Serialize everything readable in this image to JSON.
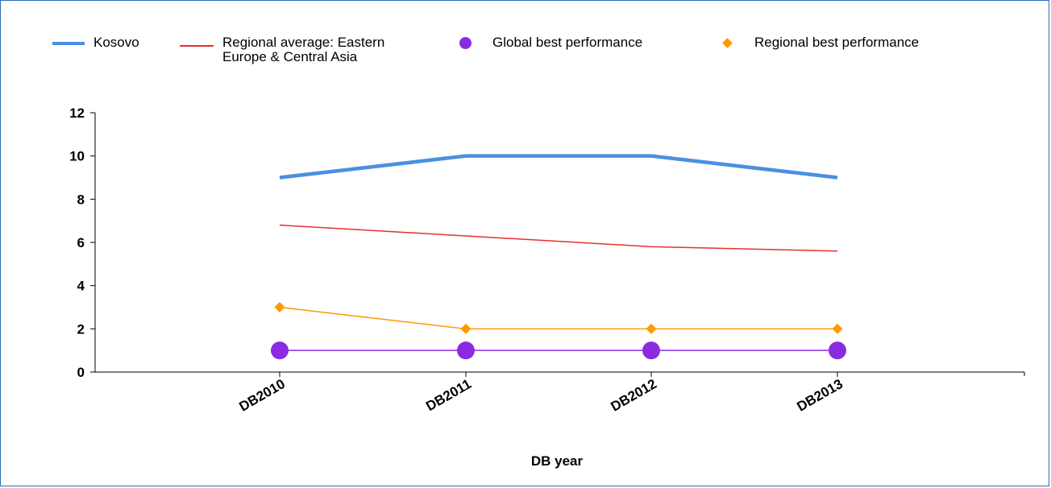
{
  "chart_data": {
    "type": "line",
    "xlabel": "DB year",
    "ylabel": "",
    "ylim": [
      0,
      12
    ],
    "yticks": [
      0,
      2,
      4,
      6,
      8,
      10,
      12
    ],
    "categories": [
      "DB2010",
      "DB2011",
      "DB2012",
      "DB2013"
    ],
    "legend_position": "top",
    "grid": false,
    "series": [
      {
        "name": "Kosovo",
        "values": [
          9,
          10,
          10,
          9
        ],
        "color": "#4a90e2",
        "marker": "none",
        "line": "thick"
      },
      {
        "name": "Regional average: Eastern Europe & Central Asia",
        "legend_lines": [
          "Regional average: Eastern",
          "Europe & Central Asia"
        ],
        "values": [
          6.8,
          6.3,
          5.8,
          5.6
        ],
        "color": "#e8302a",
        "marker": "none",
        "line": "thin"
      },
      {
        "name": "Global best performance",
        "values": [
          1,
          1,
          1,
          1
        ],
        "color": "#8a2be2",
        "marker": "circle",
        "line": "thin"
      },
      {
        "name": "Regional best performance",
        "values": [
          3,
          2,
          2,
          2
        ],
        "color": "#ff9900",
        "marker": "diamond",
        "line": "thin"
      }
    ]
  }
}
